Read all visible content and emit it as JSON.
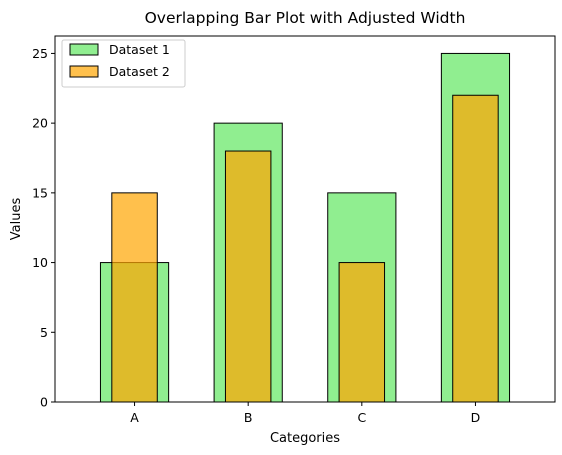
{
  "chart_data": {
    "type": "bar",
    "title": "Overlapping Bar Plot with Adjusted Width",
    "xlabel": "Categories",
    "ylabel": "Values",
    "categories": [
      "A",
      "B",
      "C",
      "D"
    ],
    "ylim": [
      0,
      26.25
    ],
    "yticks": [
      0,
      5,
      10,
      15,
      20,
      25
    ],
    "grid": false,
    "legend_position": "top-left",
    "series": [
      {
        "name": "Dataset 1",
        "values": [
          10,
          20,
          15,
          25
        ],
        "color": "#90ee90",
        "opacity": 1.0,
        "bar_width": 0.6
      },
      {
        "name": "Dataset 2",
        "values": [
          15,
          18,
          10,
          22
        ],
        "color": "#ffa500",
        "opacity": 0.7,
        "bar_width": 0.4
      }
    ],
    "edge_color": "#000000"
  }
}
